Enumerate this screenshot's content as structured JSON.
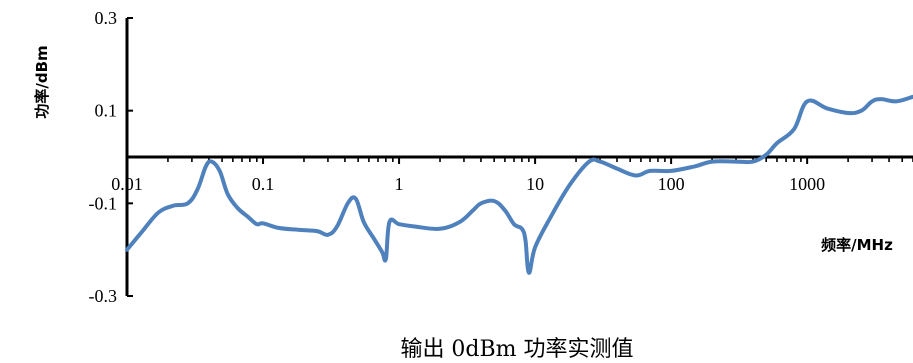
{
  "chart_data": {
    "type": "line",
    "title": "输出 0dBm 功率实测值",
    "xlabel": "频率/MHz",
    "ylabel": "功率/dBm",
    "x_scale": "log",
    "xlim": [
      0.01,
      6000
    ],
    "ylim": [
      -0.3,
      0.3
    ],
    "x_tick_labels": [
      "0.01",
      "0.1",
      "1",
      "10",
      "100",
      "1000"
    ],
    "y_tick_labels": [
      "0.3",
      "0.1",
      "-0.1",
      "-0.3"
    ],
    "series_color": "#4F81BD",
    "grid": false,
    "series": [
      {
        "x": [
          0.01,
          0.013,
          0.017,
          0.022,
          0.028,
          0.033,
          0.038,
          0.042,
          0.048,
          0.055,
          0.065,
          0.078,
          0.09,
          0.1,
          0.13,
          0.18,
          0.25,
          0.3,
          0.35,
          0.42,
          0.48,
          0.55,
          0.65,
          0.75,
          0.8,
          0.85,
          1.0,
          1.3,
          2.0,
          2.8,
          3.5,
          4.0,
          5.0,
          6.0,
          7.0,
          8.0,
          8.5,
          9.0,
          10.0,
          13.0,
          18.0,
          25.0,
          30.0,
          40.0,
          55.0,
          70.0,
          100.0,
          150.0,
          200.0,
          300.0,
          400.0,
          500.0,
          600.0,
          800.0,
          1000.0,
          1400.0,
          2000.0,
          2500.0,
          3000.0,
          3500.0,
          4500.0,
          6000.0
        ],
        "y": [
          -0.2,
          -0.16,
          -0.12,
          -0.105,
          -0.1,
          -0.07,
          -0.02,
          -0.01,
          -0.03,
          -0.08,
          -0.11,
          -0.13,
          -0.145,
          -0.143,
          -0.153,
          -0.157,
          -0.16,
          -0.168,
          -0.15,
          -0.1,
          -0.09,
          -0.14,
          -0.175,
          -0.205,
          -0.22,
          -0.14,
          -0.145,
          -0.15,
          -0.155,
          -0.14,
          -0.115,
          -0.1,
          -0.095,
          -0.115,
          -0.145,
          -0.155,
          -0.18,
          -0.25,
          -0.195,
          -0.13,
          -0.06,
          -0.01,
          -0.01,
          -0.025,
          -0.04,
          -0.03,
          -0.03,
          -0.02,
          -0.01,
          -0.01,
          -0.01,
          0.005,
          0.03,
          0.06,
          0.12,
          0.105,
          0.095,
          0.1,
          0.12,
          0.125,
          0.12,
          0.13
        ]
      }
    ]
  }
}
